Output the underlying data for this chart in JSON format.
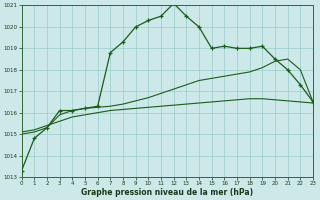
{
  "title": "Graphe pression niveau de la mer (hPa)",
  "background_color": "#cce8e8",
  "grid_color": "#99cccc",
  "line_color": "#1a5c1a",
  "x_min": 0,
  "x_max": 23,
  "y_min": 1013,
  "y_max": 1021,
  "x_ticks": [
    0,
    1,
    2,
    3,
    4,
    5,
    6,
    7,
    8,
    9,
    10,
    11,
    12,
    13,
    14,
    15,
    16,
    17,
    18,
    19,
    20,
    21,
    22,
    23
  ],
  "y_ticks": [
    1013,
    1014,
    1015,
    1016,
    1017,
    1018,
    1019,
    1020,
    1021
  ],
  "curve1_x": [
    0,
    1,
    2,
    3,
    4,
    5,
    6,
    7,
    8,
    9,
    10,
    11,
    12,
    13,
    14,
    15,
    16,
    17,
    18,
    19,
    20,
    21,
    22,
    23
  ],
  "curve1_y": [
    1013.3,
    1014.8,
    1015.3,
    1016.1,
    1016.1,
    1016.2,
    1016.3,
    1018.8,
    1019.3,
    1020.0,
    1020.3,
    1020.5,
    1021.1,
    1020.5,
    1020.0,
    1019.0,
    1019.1,
    1019.0,
    1019.0,
    1019.1,
    1018.5,
    1018.0,
    1017.3,
    1016.5
  ],
  "curve2_x": [
    0,
    1,
    2,
    3,
    4,
    5,
    6,
    7,
    8,
    9,
    10,
    11,
    12,
    13,
    14,
    15,
    16,
    17,
    18,
    19,
    20,
    21,
    22,
    23
  ],
  "curve2_y": [
    1015.1,
    1015.2,
    1015.4,
    1015.6,
    1015.8,
    1015.9,
    1016.0,
    1016.1,
    1016.15,
    1016.2,
    1016.25,
    1016.3,
    1016.35,
    1016.4,
    1016.45,
    1016.5,
    1016.55,
    1016.6,
    1016.65,
    1016.65,
    1016.6,
    1016.55,
    1016.5,
    1016.45
  ],
  "curve3_x": [
    0,
    1,
    2,
    3,
    4,
    5,
    6,
    7,
    8,
    9,
    10,
    11,
    12,
    13,
    14,
    15,
    16,
    17,
    18,
    19,
    20,
    21,
    22,
    23
  ],
  "curve3_y": [
    1015.0,
    1015.1,
    1015.3,
    1015.9,
    1016.1,
    1016.2,
    1016.25,
    1016.3,
    1016.4,
    1016.55,
    1016.7,
    1016.9,
    1017.1,
    1017.3,
    1017.5,
    1017.6,
    1017.7,
    1017.8,
    1017.9,
    1018.1,
    1018.4,
    1018.5,
    1018.0,
    1016.5
  ]
}
